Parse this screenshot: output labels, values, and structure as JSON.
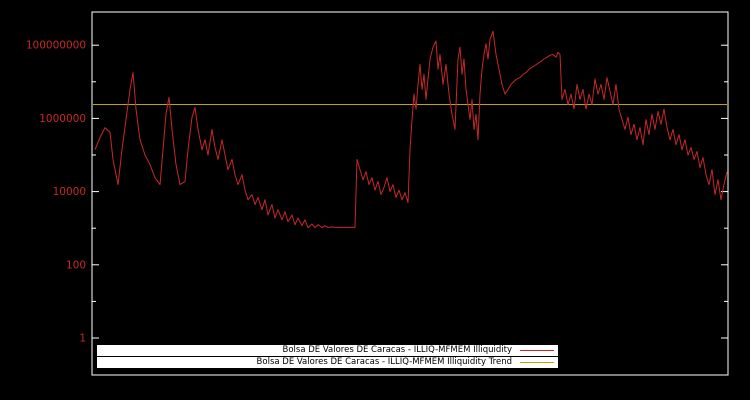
{
  "chart_data": {
    "type": "line",
    "yscale": "log",
    "xlabel": "",
    "ylabel": "",
    "ylim": [
      0.1,
      900000000.0
    ],
    "grid": false,
    "legend_position": "bottom-center",
    "background_color": "#000000",
    "frame_color": "#ffffff",
    "label_color": "#c62828",
    "legend_bg_color": "#ffffff",
    "y_ticks": [
      {
        "label": "100000000",
        "value": 100000000.0
      },
      {
        "label": "1000000",
        "value": 1000000.0
      },
      {
        "label": "10000",
        "value": 10000.0
      },
      {
        "label": "100",
        "value": 100.0
      },
      {
        "label": "1",
        "value": 1
      }
    ],
    "series": [
      {
        "name": "Bolsa DE Valores DE Caracas - ILLIQ-MFMEM Illiquidity",
        "color": "#c62828",
        "points": [
          [
            95,
            140000.0
          ],
          [
            100,
            300000.0
          ],
          [
            105,
            560000.0
          ],
          [
            110,
            420000.0
          ],
          [
            113,
            76000.0
          ],
          [
            118,
            15500.0
          ],
          [
            122,
            140000.0
          ],
          [
            126,
            930000.0
          ],
          [
            130,
            6200000.0
          ],
          [
            133,
            18000000.0
          ],
          [
            136,
            1800000.0
          ],
          [
            140,
            260000.0
          ],
          [
            145,
            100000.0
          ],
          [
            150,
            55000.0
          ],
          [
            155,
            24000.0
          ],
          [
            160,
            15500.0
          ],
          [
            163,
            140000.0
          ],
          [
            166,
            1300000.0
          ],
          [
            169,
            3800000.0
          ],
          [
            172,
            500000.0
          ],
          [
            176,
            55000.0
          ],
          [
            180,
            15500.0
          ],
          [
            185,
            19000.0
          ],
          [
            188,
            140000.0
          ],
          [
            192,
            1070000.0
          ],
          [
            195,
            2000000.0
          ],
          [
            198,
            500000.0
          ],
          [
            202,
            140000.0
          ],
          [
            205,
            260000.0
          ],
          [
            208,
            100000.0
          ],
          [
            212,
            500000.0
          ],
          [
            215,
            160000.0
          ],
          [
            218,
            76000.0
          ],
          [
            222,
            260000.0
          ],
          [
            225,
            100000.0
          ],
          [
            228,
            40000.0
          ],
          [
            232,
            76000.0
          ],
          [
            235,
            29000.0
          ],
          [
            238,
            15500.0
          ],
          [
            242,
            29000.0
          ],
          [
            245,
            11000.0
          ],
          [
            248,
            6000.0
          ],
          [
            252,
            8300.0
          ],
          [
            255,
            4400.0
          ],
          [
            258,
            6900.0
          ],
          [
            262,
            3200.0
          ],
          [
            265,
            6000.0
          ],
          [
            268,
            2300.0
          ],
          [
            272,
            4400.0
          ],
          [
            275,
            1900.0
          ],
          [
            278,
            3200.0
          ],
          [
            282,
            1700.0
          ],
          [
            285,
            2800.0
          ],
          [
            288,
            1500.0
          ],
          [
            292,
            2300.0
          ],
          [
            295,
            1250.0
          ],
          [
            298,
            1900.0
          ],
          [
            302,
            1170.0
          ],
          [
            305,
            1700.0
          ],
          [
            308,
            1030.0
          ],
          [
            312,
            1300.0
          ],
          [
            315,
            1030.0
          ],
          [
            318,
            1250.0
          ],
          [
            322,
            1030.0
          ],
          [
            325,
            1170.0
          ],
          [
            328,
            1050.0
          ],
          [
            332,
            1080.0
          ],
          [
            336,
            1050.0
          ],
          [
            340,
            1060.0
          ],
          [
            344,
            1050.0
          ],
          [
            348,
            1060.0
          ],
          [
            352,
            1050.0
          ],
          [
            355,
            1050.0
          ],
          [
            357,
            76000.0
          ],
          [
            360,
            40000.0
          ],
          [
            363,
            21000.0
          ],
          [
            366,
            35000.0
          ],
          [
            369,
            15500.0
          ],
          [
            372,
            24000.0
          ],
          [
            375,
            11000.0
          ],
          [
            378,
            19000.0
          ],
          [
            381,
            8300.0
          ],
          [
            384,
            13000.0
          ],
          [
            387,
            24000.0
          ],
          [
            390,
            10000.0
          ],
          [
            393,
            15500.0
          ],
          [
            396,
            6900.0
          ],
          [
            399,
            11000.0
          ],
          [
            402,
            6000.0
          ],
          [
            405,
            9400.0
          ],
          [
            408,
            5000.0
          ],
          [
            410,
            140000.0
          ],
          [
            412,
            930000.0
          ],
          [
            414,
            4600000.0
          ],
          [
            416,
            1800000.0
          ],
          [
            418,
            8500000.0
          ],
          [
            420,
            30000000.0
          ],
          [
            422,
            6200000.0
          ],
          [
            424,
            16000000.0
          ],
          [
            426,
            3300000.0
          ],
          [
            428,
            12000000.0
          ],
          [
            430,
            42000000.0
          ],
          [
            433,
            89000000.0
          ],
          [
            436,
            130000000.0
          ],
          [
            438,
            22000000.0
          ],
          [
            440,
            56000000.0
          ],
          [
            443,
            8500000.0
          ],
          [
            446,
            30000000.0
          ],
          [
            449,
            4600000.0
          ],
          [
            452,
            1300000.0
          ],
          [
            455,
            500000.0
          ],
          [
            458,
            42000000.0
          ],
          [
            460,
            89000000.0
          ],
          [
            462,
            16000000.0
          ],
          [
            464,
            42000000.0
          ],
          [
            466,
            6200000.0
          ],
          [
            468,
            2400000.0
          ],
          [
            470,
            930000.0
          ],
          [
            472,
            3300000.0
          ],
          [
            474,
            500000.0
          ],
          [
            476,
            1300000.0
          ],
          [
            478,
            260000.0
          ],
          [
            480,
            4600000.0
          ],
          [
            482,
            22000000.0
          ],
          [
            484,
            56000000.0
          ],
          [
            486,
            110000000.0
          ],
          [
            488,
            42000000.0
          ],
          [
            490,
            145000000.0
          ],
          [
            493,
            240000000.0
          ],
          [
            496,
            56000000.0
          ],
          [
            499,
            22000000.0
          ],
          [
            502,
            8500000.0
          ],
          [
            505,
            4600000.0
          ],
          [
            508,
            6200000.0
          ],
          [
            511,
            8500000.0
          ],
          [
            514,
            10300000.0
          ],
          [
            517,
            12000000.0
          ],
          [
            520,
            13000000.0
          ],
          [
            523,
            16000000.0
          ],
          [
            526,
            18000000.0
          ],
          [
            529,
            22000000.0
          ],
          [
            532,
            25000000.0
          ],
          [
            535,
            28000000.0
          ],
          [
            538,
            32000000.0
          ],
          [
            541,
            36000000.0
          ],
          [
            544,
            42000000.0
          ],
          [
            547,
            47000000.0
          ],
          [
            550,
            53000000.0
          ],
          [
            553,
            56000000.0
          ],
          [
            556,
            47000000.0
          ],
          [
            558,
            64000000.0
          ],
          [
            560,
            56000000.0
          ],
          [
            562,
            3300000.0
          ],
          [
            565,
            6200000.0
          ],
          [
            568,
            2400000.0
          ],
          [
            571,
            4600000.0
          ],
          [
            574,
            1800000.0
          ],
          [
            577,
            8500000.0
          ],
          [
            580,
            3300000.0
          ],
          [
            583,
            6200000.0
          ],
          [
            586,
            1800000.0
          ],
          [
            589,
            4600000.0
          ],
          [
            592,
            2400000.0
          ],
          [
            595,
            12000000.0
          ],
          [
            598,
            4600000.0
          ],
          [
            601,
            8500000.0
          ],
          [
            604,
            3300000.0
          ],
          [
            607,
            13000000.0
          ],
          [
            610,
            5500000.0
          ],
          [
            613,
            2400000.0
          ],
          [
            616,
            8500000.0
          ],
          [
            619,
            1800000.0
          ],
          [
            622,
            930000.0
          ],
          [
            625,
            500000.0
          ],
          [
            628,
            1070000.0
          ],
          [
            631,
            360000.0
          ],
          [
            634,
            690000.0
          ],
          [
            637,
            260000.0
          ],
          [
            640,
            560000.0
          ],
          [
            643,
            190000.0
          ],
          [
            646,
            930000.0
          ],
          [
            649,
            360000.0
          ],
          [
            652,
            1300000.0
          ],
          [
            655,
            500000.0
          ],
          [
            658,
            1550000.0
          ],
          [
            661,
            690000.0
          ],
          [
            664,
            1800000.0
          ],
          [
            667,
            560000.0
          ],
          [
            670,
            260000.0
          ],
          [
            673,
            500000.0
          ],
          [
            676,
            190000.0
          ],
          [
            679,
            360000.0
          ],
          [
            682,
            140000.0
          ],
          [
            685,
            260000.0
          ],
          [
            688,
            100000.0
          ],
          [
            691,
            160000.0
          ],
          [
            694,
            76000.0
          ],
          [
            697,
            125000.0
          ],
          [
            700,
            45000.0
          ],
          [
            703,
            85000.0
          ],
          [
            706,
            29000.0
          ],
          [
            709,
            15500.0
          ],
          [
            712,
            40000.0
          ],
          [
            715,
            8300.0
          ],
          [
            718,
            21000.0
          ],
          [
            721,
            6000.0
          ],
          [
            724,
            15500.0
          ],
          [
            727,
            35000.0
          ]
        ]
      },
      {
        "name": "Bolsa DE Valores DE Caracas - ILLIQ-MFMEM Illiquidity Trend",
        "color": "#c0a500",
        "trend_value": 2400000.0
      }
    ]
  }
}
